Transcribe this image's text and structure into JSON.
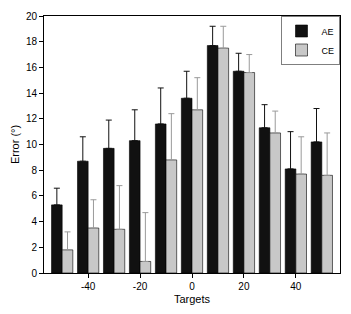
{
  "chart_data": {
    "type": "bar",
    "x_label": "Targets",
    "y_label": "Error (°)",
    "x": [
      -50,
      -40,
      -30,
      -20,
      -10,
      0,
      10,
      20,
      30,
      40,
      50
    ],
    "series": [
      {
        "name": "AE",
        "color": "#111111",
        "values": [
          5.3,
          8.7,
          9.7,
          10.3,
          11.6,
          13.6,
          17.7,
          15.7,
          11.3,
          8.1,
          10.2
        ],
        "error": [
          1.3,
          1.9,
          2.2,
          2.4,
          2.8,
          2.1,
          1.5,
          1.4,
          1.8,
          2.9,
          2.6
        ]
      },
      {
        "name": "CE",
        "color": "#c8c8c8",
        "values": [
          1.8,
          3.5,
          3.4,
          0.9,
          8.8,
          12.7,
          17.5,
          15.6,
          10.9,
          7.7,
          7.6
        ],
        "error": [
          1.4,
          2.2,
          3.4,
          3.8,
          3.6,
          2.5,
          1.7,
          1.4,
          1.7,
          2.9,
          3.3
        ]
      }
    ],
    "xlim": [
      -57,
      57
    ],
    "xticks": [
      -40,
      -20,
      0,
      20,
      40
    ],
    "ylim": [
      0,
      20
    ],
    "yticks": [
      0,
      2,
      4,
      6,
      8,
      10,
      12,
      14,
      16,
      18,
      20
    ],
    "grid": false,
    "legend": "top right"
  }
}
